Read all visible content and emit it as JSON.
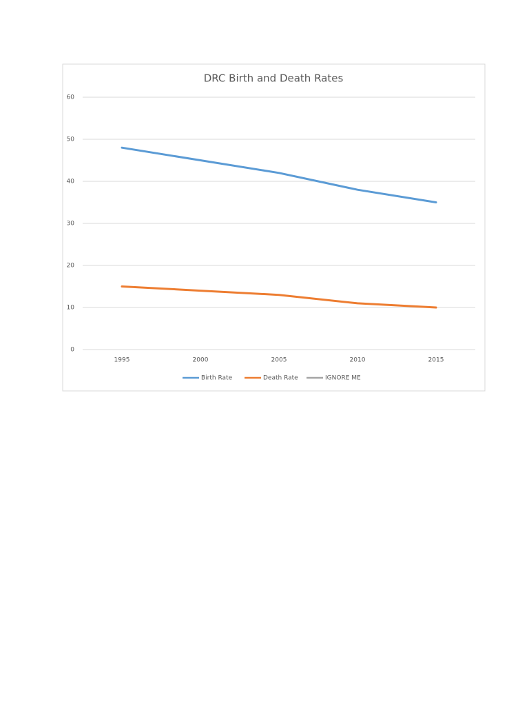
{
  "chart_data": {
    "type": "line",
    "title": "DRC Birth and Death Rates",
    "categories": [
      "1995",
      "2000",
      "2005",
      "2010",
      "2015"
    ],
    "series": [
      {
        "name": "Birth Rate",
        "color": "#5b9bd5",
        "values": [
          48,
          45,
          42,
          38,
          35
        ]
      },
      {
        "name": "Death Rate",
        "color": "#ed7d31",
        "values": [
          15,
          14,
          13,
          11,
          10
        ]
      },
      {
        "name": "IGNORE ME",
        "color": "#a5a5a5",
        "values": [
          null,
          null,
          null,
          null,
          null
        ]
      }
    ],
    "ylim": [
      0,
      60
    ],
    "yticks": [
      0,
      10,
      20,
      30,
      40,
      50,
      60
    ],
    "grid": true,
    "legend": "bottom"
  }
}
